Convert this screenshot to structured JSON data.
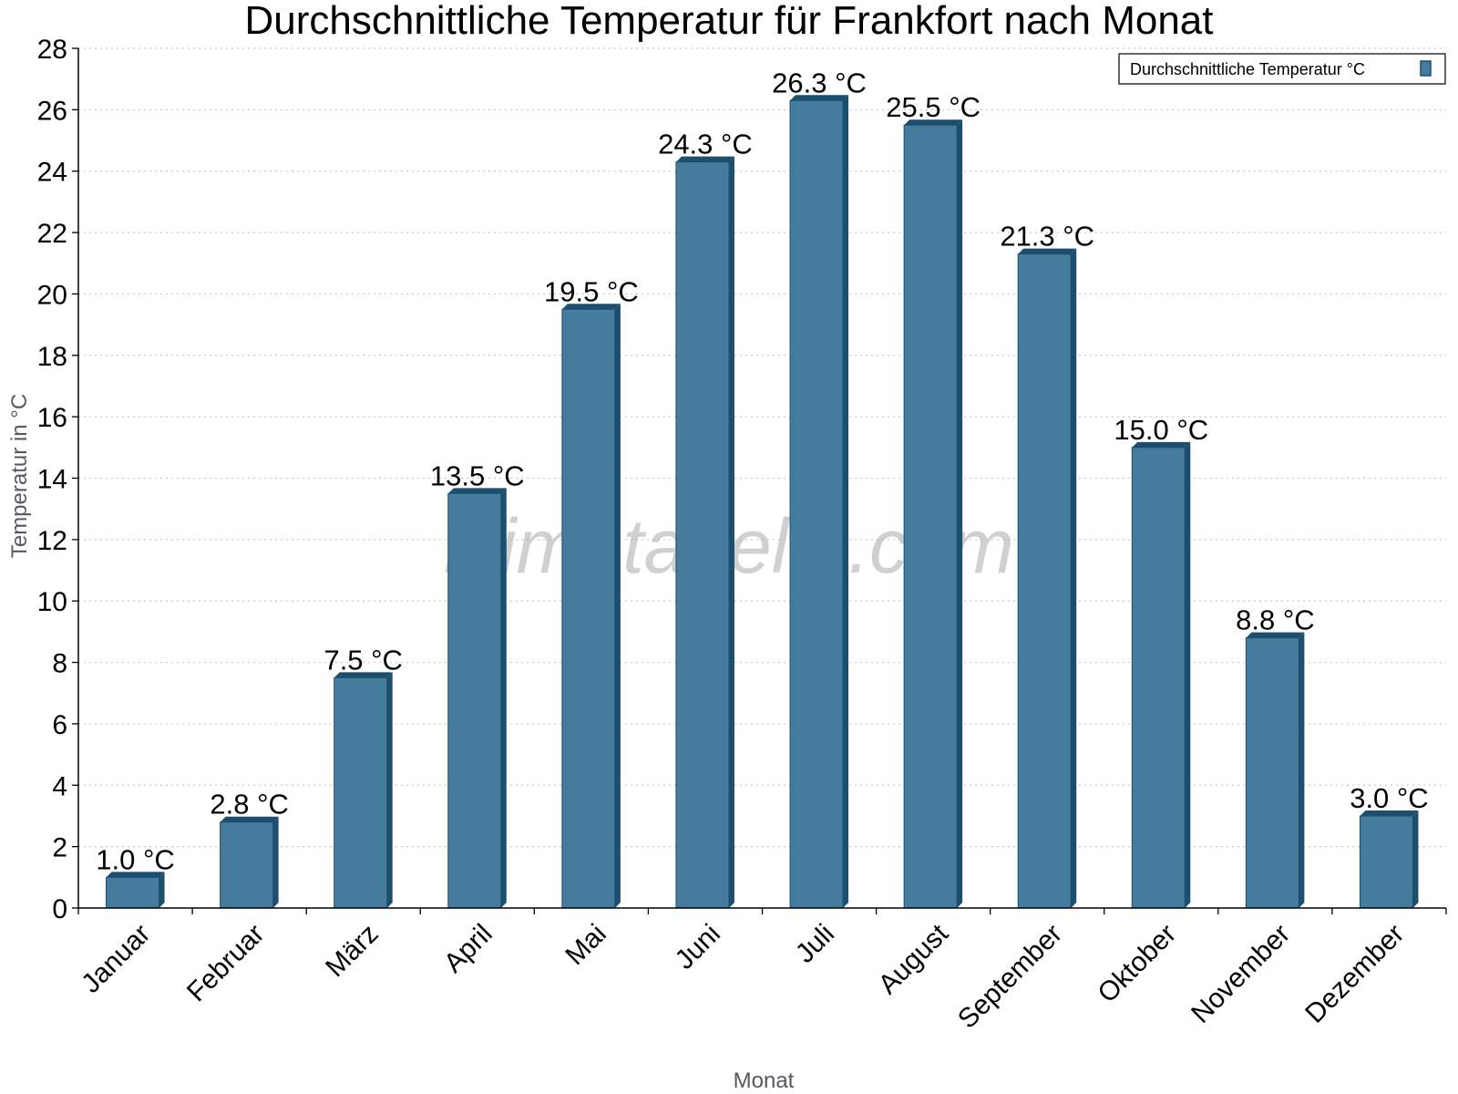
{
  "chart_data": {
    "type": "bar",
    "title": "Durchschnittliche Temperatur für Frankfort nach Monat",
    "xlabel": "Monat",
    "ylabel": "Temperatur in °C",
    "categories": [
      "Januar",
      "Februar",
      "März",
      "April",
      "Mai",
      "Juni",
      "Juli",
      "August",
      "September",
      "Oktober",
      "November",
      "Dezember"
    ],
    "series": [
      {
        "name": "Durchschnittliche Temperatur °C",
        "values": [
          1.0,
          2.8,
          7.5,
          13.5,
          19.5,
          24.3,
          26.3,
          25.5,
          21.3,
          15.0,
          8.8,
          3.0
        ],
        "labels": [
          "1.0 °C",
          "2.8 °C",
          "7.5 °C",
          "13.5 °C",
          "19.5 °C",
          "24.3 °C",
          "26.3 °C",
          "25.5 °C",
          "21.3 °C",
          "15.0 °C",
          "8.8 °C",
          "3.0 °C"
        ]
      }
    ],
    "ylim": [
      0,
      28
    ],
    "yticks": [
      0,
      2,
      4,
      6,
      8,
      10,
      12,
      14,
      16,
      18,
      20,
      22,
      24,
      26,
      28
    ],
    "grid": "horizontal dotted",
    "legend_position": "top-right"
  },
  "watermark": "klimatabelle.com",
  "colors": {
    "bar_face": "#457b9d",
    "bar_side": "#1d4e6e",
    "grid": "#c8c8c8",
    "axis": "#000000"
  }
}
